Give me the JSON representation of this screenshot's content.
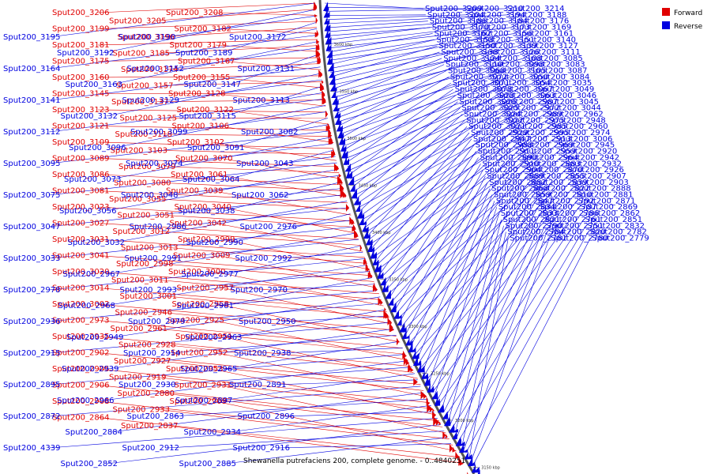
{
  "caption": "Shewanella putrefaciens 200, complete genome. - 0..4840251",
  "legend": [
    {
      "label": "Forward",
      "color": "#e00000"
    },
    {
      "label": "Reverse",
      "color": "#0000e0"
    }
  ],
  "colors": {
    "forward": "#e00000",
    "reverse": "#0000e0",
    "backbone": "#555555"
  },
  "ticks": [
    "3600 kbp",
    "3550 kbp",
    "3500 kbp",
    "3450 kbp",
    "3400 kbp",
    "3350 kbp",
    "3300 kbp",
    "3250 kbp",
    "3200 kbp",
    "3150 kbp"
  ],
  "forward_genes": [
    "Sput200_3206",
    "Sput200_3205",
    "Sput200_3208",
    "Sput200_3199",
    "Sput200_3196",
    "Sput200_3182",
    "Sput200_3181",
    "Sput200_3185",
    "Sput200_3179",
    "Sput200_3175",
    "Sput200_3174",
    "Sput200_3167",
    "Sput200_3160",
    "Sput200_3157",
    "Sput200_3155",
    "Sput200_3145",
    "Sput200_3137",
    "Sput200_3128",
    "Sput200_3123",
    "Sput200_3125",
    "Sput200_3122",
    "Sput200_3121",
    "Sput200_3118",
    "Sput200_3106",
    "Sput200_3109",
    "Sput200_3103",
    "Sput200_3102",
    "Sput200_3089",
    "Sput200_3079",
    "Sput200_3070",
    "Sput200_3086",
    "Sput200_3080",
    "Sput200_3061",
    "Sput200_3081",
    "Sput200_3055",
    "Sput200_3039",
    "Sput200_3023",
    "Sput200_3051",
    "Sput200_3040",
    "Sput200_3027",
    "Sput200_3012",
    "Sput200_3042",
    "Sput200_3031",
    "Sput200_3013",
    "Sput200_2999",
    "Sput200_3041",
    "Sput200_2998",
    "Sput200_3009",
    "Sput200_3020",
    "Sput200_3011",
    "Sput200_3000",
    "Sput200_3014",
    "Sput200_3001",
    "Sput200_2957",
    "Sput200_3002",
    "Sput200_2946",
    "Sput200_2958",
    "Sput200_2973",
    "Sput200_2961",
    "Sput200_2925",
    "Sput200_2935",
    "Sput200_2928",
    "Sput200_2951",
    "Sput200_2902",
    "Sput200_2927",
    "Sput200_2952",
    "Sput200_2905",
    "Sput200_2919",
    "Sput200_2953",
    "Sput200_2906",
    "Sput200_2880",
    "Sput200_2931",
    "Sput200_2908",
    "Sput200_2933",
    "Sput200_2909",
    "Sput200_2864",
    "Sput200_2837"
  ],
  "reverse_genes": [
    "Sput200_3195",
    "Sput200_3192",
    "Sput200_3190",
    "Sput200_3189",
    "Sput200_3172",
    "Sput200_3164",
    "Sput200_3163",
    "Sput200_3152",
    "Sput200_3147",
    "Sput200_3131",
    "Sput200_3141",
    "Sput200_3132",
    "Sput200_3129",
    "Sput200_3115",
    "Sput200_3113",
    "Sput200_3112",
    "Sput200_3096",
    "Sput200_3099",
    "Sput200_3091",
    "Sput200_3082",
    "Sput200_3095",
    "Sput200_3073",
    "Sput200_3074",
    "Sput200_3064",
    "Sput200_3043",
    "Sput200_3075",
    "Sput200_3056",
    "Sput200_3048",
    "Sput200_3038",
    "Sput200_3062",
    "Sput200_3047",
    "Sput200_3032",
    "Sput200_2986",
    "Sput200_2990",
    "Sput200_2976",
    "Sput200_3033",
    "Sput200_2967",
    "Sput200_2991",
    "Sput200_2977",
    "Sput200_2992",
    "Sput200_2978",
    "Sput200_2968",
    "Sput200_2993",
    "Sput200_2981",
    "Sput200_2970",
    "Sput200_2936",
    "Sput200_2949",
    "Sput200_2979",
    "Sput200_2963",
    "Sput200_2950",
    "Sput200_2915",
    "Sput200_2939",
    "Sput200_2914",
    "Sput200_2965",
    "Sput200_2938",
    "Sput200_2895",
    "Sput200_2966",
    "Sput200_2930",
    "Sput200_2897",
    "Sput200_2891",
    "Sput200_2872",
    "Sput200_2884",
    "Sput200_2863",
    "Sput200_2934",
    "Sput200_2896",
    "Sput200_4339",
    "Sput200_2852",
    "Sput200_2912",
    "Sput200_2885",
    "Sput200_2916",
    "Sput200_2892",
    "Sput200_2917",
    "Sput200_2893",
    "Sput200_3209",
    "Sput200_3210",
    "Sput200_3214",
    "Sput200_3204",
    "Sput200_3194",
    "Sput200_3188",
    "Sput200_3186",
    "Sput200_3184",
    "Sput200_3176",
    "Sput200_3170",
    "Sput200_3173",
    "Sput200_3169",
    "Sput200_3162",
    "Sput200_3156",
    "Sput200_3161",
    "Sput200_3158",
    "Sput200_3151",
    "Sput200_3140",
    "Sput200_3150",
    "Sput200_3139",
    "Sput200_3127",
    "Sput200_3138",
    "Sput200_3126",
    "Sput200_3111",
    "Sput200_3124",
    "Sput200_3108",
    "Sput200_3085",
    "Sput200_3110",
    "Sput200_3098",
    "Sput200_3083",
    "Sput200_3068",
    "Sput200_3105",
    "Sput200_3087",
    "Sput200_3072",
    "Sput200_3050",
    "Sput200_3084",
    "Sput200_3071",
    "Sput200_3054",
    "Sput200_3035",
    "Sput200_3078",
    "Sput200_3067",
    "Sput200_3049",
    "Sput200_3028",
    "Sput200_3063",
    "Sput200_3046",
    "Sput200_3026",
    "Sput200_2987",
    "Sput200_3045",
    "Sput200_3025",
    "Sput200_2972",
    "Sput200_3044",
    "Sput200_3024",
    "Sput200_2989",
    "Sput200_2962",
    "Sput200_3022",
    "Sput200_2975",
    "Sput200_2948",
    "Sput200_3021",
    "Sput200_2985",
    "Sput200_2960",
    "Sput200_2929",
    "Sput200_2995",
    "Sput200_2974",
    "Sput200_2947",
    "Sput200_2913",
    "Sput200_3006",
    "Sput200_2988",
    "Sput200_2969",
    "Sput200_2945",
    "Sput200_2911",
    "Sput200_2959",
    "Sput200_2920",
    "Sput200_2890",
    "Sput200_2964",
    "Sput200_2942",
    "Sput200_2910",
    "Sput200_2883",
    "Sput200_2932",
    "Sput200_2904",
    "Sput200_2870",
    "Sput200_2926",
    "Sput200_2889",
    "Sput200_2855",
    "Sput200_2907",
    "Sput200_2882",
    "Sput200_2839",
    "Sput200_2903",
    "Sput200_2868",
    "Sput200_2822",
    "Sput200_2888",
    "Sput200_2859",
    "Sput200_2810",
    "Sput200_2881",
    "Sput200_2847",
    "Sput200_2792",
    "Sput200_2871",
    "Sput200_2834",
    "Sput200_2787",
    "Sput200_2869",
    "Sput200_2833",
    "Sput200_2786",
    "Sput200_2862",
    "Sput200_2821",
    "Sput200_2761",
    "Sput200_2851",
    "Sput200_2790",
    "Sput200_2751",
    "Sput200_2832",
    "Sput200_2784",
    "Sput200_2820",
    "Sput200_2782",
    "Sput200_2781",
    "Sput200_2780",
    "Sput200_2779"
  ]
}
